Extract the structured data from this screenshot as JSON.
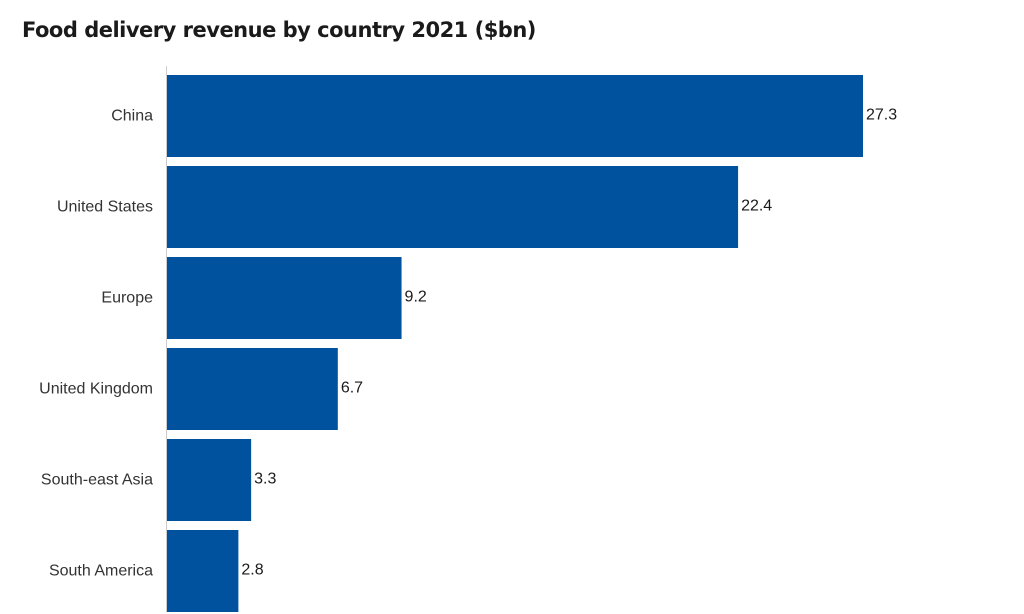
{
  "chart_data": {
    "type": "bar",
    "orientation": "horizontal",
    "title": "Food delivery revenue by country 2021 ($bn)",
    "categories": [
      "China",
      "United States",
      "Europe",
      "United Kingdom",
      "South-east Asia",
      "South America"
    ],
    "values": [
      27.3,
      22.4,
      9.2,
      6.7,
      3.3,
      2.8
    ],
    "value_labels": [
      "27.3",
      "22.4",
      "9.2",
      "6.7",
      "3.3",
      "2.8"
    ],
    "xlim": [
      0,
      27.3
    ],
    "grid": false,
    "legend": "none",
    "colors": {
      "bar": "#00519e",
      "axis": "#cccccc"
    }
  }
}
